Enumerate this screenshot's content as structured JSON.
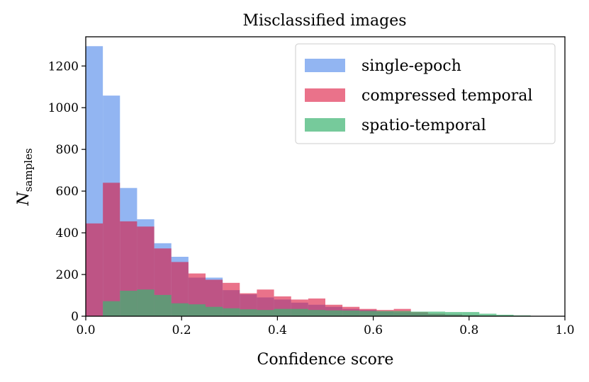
{
  "chart_data": {
    "type": "bar",
    "title": "Misclassified images",
    "xlabel": "Confidence score",
    "ylabel_main": "N",
    "ylabel_sub": "samples",
    "xlim": [
      0,
      1.0
    ],
    "ylim": [
      0,
      1340
    ],
    "xticks": [
      0.0,
      0.2,
      0.4,
      0.6,
      0.8,
      1.0
    ],
    "xtick_labels": [
      "0.0",
      "0.2",
      "0.4",
      "0.6",
      "0.8",
      "1.0"
    ],
    "yticks": [
      0,
      200,
      400,
      600,
      800,
      1000,
      1200
    ],
    "ytick_labels": [
      "0",
      "200",
      "400",
      "600",
      "800",
      "1000",
      "1200"
    ],
    "grid": false,
    "legend_position": "top-right",
    "bin_edges": [
      0.0,
      0.0357,
      0.0714,
      0.1071,
      0.1429,
      0.1786,
      0.2143,
      0.25,
      0.2857,
      0.3214,
      0.3571,
      0.3929,
      0.4286,
      0.4643,
      0.5,
      0.5357,
      0.5714,
      0.6071,
      0.6429,
      0.6786,
      0.7143,
      0.75,
      0.7857,
      0.8214,
      0.8571,
      0.8929,
      0.9286
    ],
    "series": [
      {
        "name": "single-epoch",
        "color": "#6495ED",
        "opacity": 0.7,
        "values": [
          1295,
          1058,
          615,
          465,
          350,
          285,
          185,
          185,
          125,
          105,
          90,
          80,
          65,
          55,
          45,
          35,
          30,
          22,
          18,
          14,
          10,
          8,
          5,
          3,
          0,
          0
        ]
      },
      {
        "name": "compressed temporal",
        "color": "#DC143C",
        "opacity": 0.6,
        "values": [
          445,
          640,
          455,
          430,
          325,
          260,
          205,
          175,
          160,
          110,
          128,
          95,
          80,
          85,
          55,
          45,
          35,
          30,
          35,
          20,
          12,
          8,
          5,
          3,
          0,
          0
        ]
      },
      {
        "name": "spatio-temporal",
        "color": "#3CB371",
        "opacity": 0.7,
        "values": [
          0,
          72,
          122,
          128,
          102,
          62,
          57,
          45,
          38,
          33,
          30,
          35,
          35,
          30,
          28,
          27,
          25,
          25,
          25,
          22,
          22,
          20,
          20,
          12,
          7,
          4
        ]
      }
    ]
  }
}
